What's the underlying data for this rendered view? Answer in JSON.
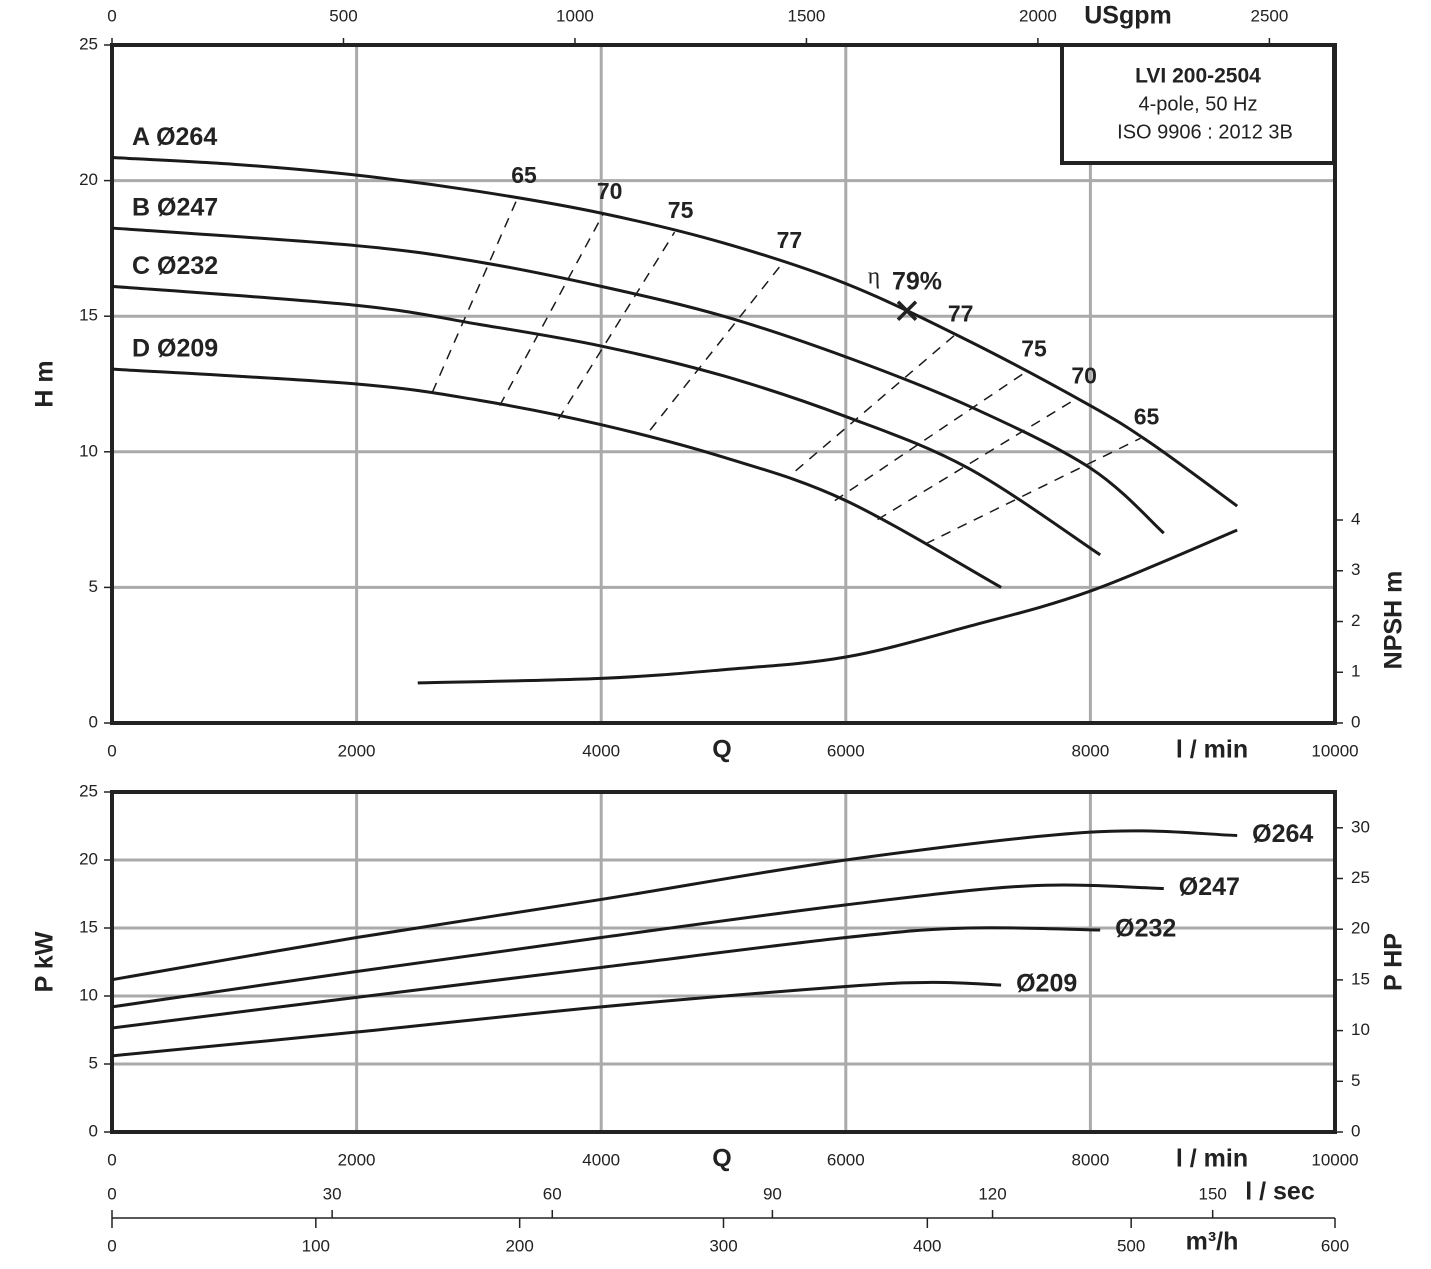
{
  "chart_data": [
    {
      "type": "line",
      "info": [
        "LVI 200-2504",
        "4-pole, 50 Hz",
        "ISO 9906 : 2012 3B"
      ],
      "xlabel": "Q",
      "xunit": "l / min",
      "ylabel": "H m",
      "y2label": "NPSH m",
      "x2label": "USgpm",
      "xlim": [
        0,
        10000
      ],
      "xticks": [
        0,
        2000,
        4000,
        6000,
        8000,
        10000
      ],
      "x2lim": [
        0,
        2641.7
      ],
      "x2ticks": [
        0,
        500,
        1000,
        1500,
        2000,
        2500
      ],
      "ylim": [
        0,
        25
      ],
      "yticks": [
        0,
        5,
        10,
        15,
        20,
        25
      ],
      "y2lim": [
        0,
        13.36
      ],
      "y2ticks": [
        0,
        1,
        2,
        3,
        4
      ],
      "grid": true,
      "color": "#1a1a1a",
      "series": [
        {
          "name": "A Ø264",
          "x": [
            0,
            1000,
            2000,
            3000,
            4000,
            5000,
            6000,
            7000,
            8000,
            8500,
            9200
          ],
          "values": [
            20.85,
            20.6,
            20.2,
            19.6,
            18.8,
            17.7,
            16.2,
            14.1,
            11.7,
            10.3,
            8.0
          ]
        },
        {
          "name": "B Ø247",
          "x": [
            0,
            2000,
            3000,
            4000,
            5000,
            6000,
            7000,
            8000,
            8600
          ],
          "values": [
            18.25,
            17.6,
            17.0,
            16.1,
            15.0,
            13.5,
            11.7,
            9.4,
            7.0
          ]
        },
        {
          "name": "C Ø232",
          "x": [
            0,
            2000,
            3000,
            4000,
            5000,
            6000,
            7000,
            8080
          ],
          "values": [
            16.1,
            15.4,
            14.7,
            13.9,
            12.8,
            11.3,
            9.4,
            6.2
          ]
        },
        {
          "name": "D Ø209",
          "x": [
            0,
            2000,
            3000,
            4000,
            5000,
            6000,
            7270
          ],
          "values": [
            13.05,
            12.5,
            11.9,
            11.0,
            9.8,
            8.2,
            5.0
          ]
        },
        {
          "axis": "y2",
          "x": [
            2500,
            4000,
            5000,
            6000,
            7000,
            8000,
            9200
          ],
          "values": [
            0.79,
            0.88,
            1.05,
            1.3,
            1.9,
            2.6,
            3.8
          ]
        }
      ],
      "efficiency_lines": [
        {
          "efficiency": 65,
          "x": [
            2620,
            3320
          ],
          "values": [
            12.2,
            19.4
          ]
        },
        {
          "efficiency": 70,
          "x": [
            3170,
            4020
          ],
          "values": [
            11.7,
            18.8
          ]
        },
        {
          "efficiency": 75,
          "x": [
            3650,
            4600
          ],
          "values": [
            11.2,
            18.1
          ]
        },
        {
          "efficiency": 77,
          "x": [
            4400,
            5490
          ],
          "values": [
            10.8,
            17.0
          ]
        },
        {
          "efficiency": 77,
          "x": [
            5590,
            6890
          ],
          "values": [
            9.3,
            14.3
          ]
        },
        {
          "efficiency": 75,
          "x": [
            5910,
            7490
          ],
          "values": [
            8.2,
            13.0
          ]
        },
        {
          "efficiency": 70,
          "x": [
            6260,
            7900
          ],
          "values": [
            7.5,
            12.0
          ]
        },
        {
          "efficiency": 65,
          "x": [
            6650,
            8410
          ],
          "values": [
            6.6,
            10.5
          ]
        }
      ],
      "bep": {
        "symbol": "η",
        "label": "79%",
        "x": 6500,
        "value": 15.2
      }
    },
    {
      "type": "line",
      "xlabel": "Q",
      "xunit": "l / min",
      "ylabel": "P kW",
      "y2label": "P HP",
      "xlim": [
        0,
        10000
      ],
      "xticks": [
        0,
        2000,
        4000,
        6000,
        8000,
        10000
      ],
      "ylim": [
        0,
        25
      ],
      "yticks": [
        0,
        5,
        10,
        15,
        20,
        25
      ],
      "y2lim": [
        0,
        33.53
      ],
      "y2ticks": [
        0,
        5,
        10,
        15,
        20,
        25,
        30
      ],
      "x2label": "l / sec",
      "x2lim": [
        0,
        166.67
      ],
      "x2ticks": [
        0,
        30,
        60,
        90,
        120,
        150
      ],
      "x3label": "m³/h",
      "x3lim": [
        0,
        600
      ],
      "x3ticks": [
        0,
        100,
        200,
        300,
        400,
        500,
        600
      ],
      "grid": true,
      "color": "#1a1a1a",
      "series": [
        {
          "name": "Ø264",
          "x": [
            0,
            2000,
            4000,
            6000,
            8000,
            9200
          ],
          "values": [
            11.2,
            14.3,
            17.1,
            20.0,
            22.05,
            21.8
          ]
        },
        {
          "name": "Ø247",
          "x": [
            0,
            2000,
            4000,
            6000,
            7500,
            8600
          ],
          "values": [
            9.2,
            11.8,
            14.3,
            16.7,
            18.1,
            17.9
          ]
        },
        {
          "name": "Ø232",
          "x": [
            0,
            2000,
            4000,
            6000,
            7000,
            8080
          ],
          "values": [
            7.65,
            9.9,
            12.1,
            14.3,
            15.0,
            14.85
          ]
        },
        {
          "name": "Ø209",
          "x": [
            0,
            2000,
            4000,
            6000,
            6700,
            7270
          ],
          "values": [
            5.6,
            7.35,
            9.2,
            10.7,
            11.0,
            10.8
          ]
        }
      ]
    }
  ]
}
